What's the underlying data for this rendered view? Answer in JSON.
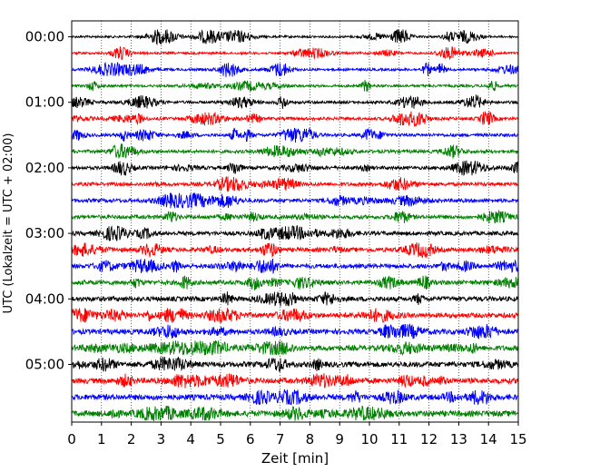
{
  "chart_data": {
    "type": "line",
    "title": "",
    "xlabel": "Zeit  [min]",
    "ylabel": "UTC (Lokalzeit = UTC + 02:00)",
    "xlim": [
      0,
      15
    ],
    "x_ticks": [
      "0",
      "1",
      "2",
      "3",
      "4",
      "5",
      "6",
      "7",
      "8",
      "9",
      "10",
      "11",
      "12",
      "13",
      "14",
      "15"
    ],
    "y_ticks": [
      "00:00",
      "01:00",
      "02:00",
      "03:00",
      "04:00",
      "05:00"
    ],
    "grid": "vertical dotted",
    "trace_colors": [
      "#000000",
      "#ff0000",
      "#0000ff",
      "#008000"
    ],
    "series": [
      {
        "start": "00:00",
        "color": "#000000"
      },
      {
        "start": "00:15",
        "color": "#ff0000"
      },
      {
        "start": "00:30",
        "color": "#0000ff"
      },
      {
        "start": "00:45",
        "color": "#008000"
      },
      {
        "start": "01:00",
        "color": "#000000"
      },
      {
        "start": "01:15",
        "color": "#ff0000"
      },
      {
        "start": "01:30",
        "color": "#0000ff"
      },
      {
        "start": "01:45",
        "color": "#008000"
      },
      {
        "start": "02:00",
        "color": "#000000"
      },
      {
        "start": "02:15",
        "color": "#ff0000"
      },
      {
        "start": "02:30",
        "color": "#0000ff"
      },
      {
        "start": "02:45",
        "color": "#008000"
      },
      {
        "start": "03:00",
        "color": "#000000"
      },
      {
        "start": "03:15",
        "color": "#ff0000"
      },
      {
        "start": "03:30",
        "color": "#0000ff"
      },
      {
        "start": "03:45",
        "color": "#008000"
      },
      {
        "start": "04:00",
        "color": "#000000"
      },
      {
        "start": "04:15",
        "color": "#ff0000"
      },
      {
        "start": "04:30",
        "color": "#0000ff"
      },
      {
        "start": "04:45",
        "color": "#008000"
      },
      {
        "start": "05:00",
        "color": "#000000"
      },
      {
        "start": "05:15",
        "color": "#ff0000"
      },
      {
        "start": "05:30",
        "color": "#0000ff"
      },
      {
        "start": "05:45",
        "color": "#008000"
      }
    ]
  }
}
